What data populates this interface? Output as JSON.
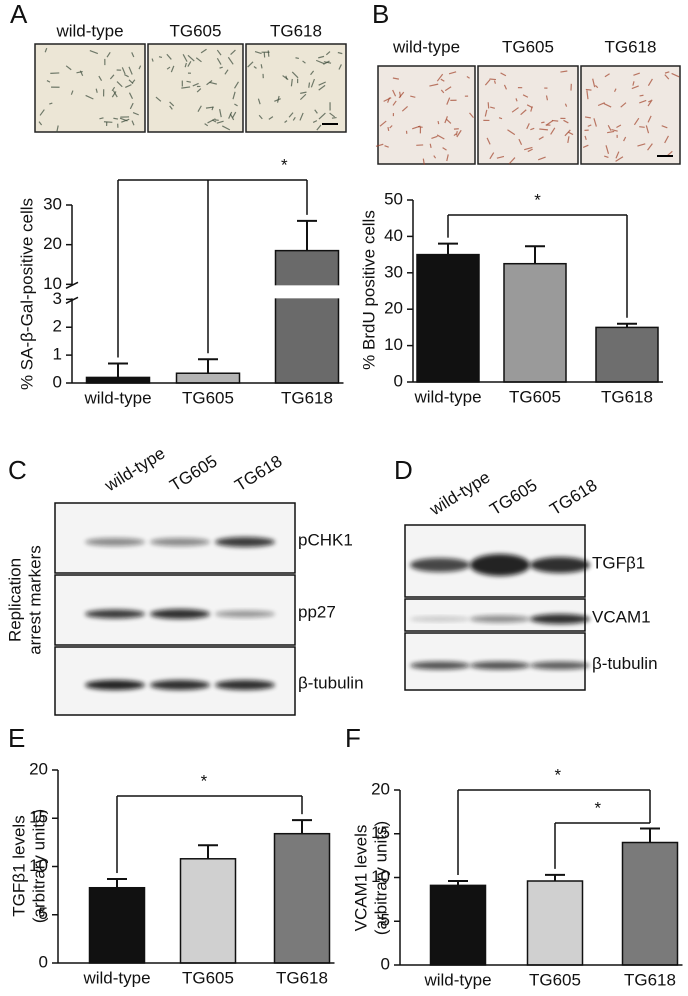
{
  "panel_labels": [
    "A",
    "B",
    "C",
    "D",
    "E",
    "F"
  ],
  "micrographs": [
    {
      "labels": [
        "wild-type",
        "TG605",
        "TG618"
      ]
    },
    {
      "labels": [
        "wild-type",
        "TG605",
        "TG618"
      ]
    }
  ],
  "blots": [
    {
      "lanes": [
        "wild-type",
        "TG605",
        "TG618"
      ],
      "bands": [
        "pCHK1",
        "pp27",
        "β-tubulin"
      ],
      "side_label": [
        "Replication",
        "arrest markers"
      ]
    },
    {
      "lanes": [
        "wild-type",
        "TG605",
        "TG618"
      ],
      "bands": [
        "TGFβ1",
        "VCAM1",
        "β-tubulin"
      ]
    }
  ],
  "chart_data": [
    {
      "type": "bar",
      "ylabel": [
        "% SA-β-Gal-positive cells"
      ],
      "categories": [
        "wild-type",
        "TG605",
        "TG618"
      ],
      "values": [
        0.2,
        0.35,
        18.5
      ],
      "errors": [
        0.5,
        0.5,
        7.5
      ],
      "colors": [
        "#111111",
        "#b4b4b4",
        "#6a6a6a"
      ],
      "ylim": [
        0,
        30
      ],
      "y_break": [
        3,
        10
      ],
      "yticks": [
        0,
        1,
        2,
        3,
        10,
        20,
        30
      ],
      "brackets": [
        {
          "label": "*",
          "between": [
            "wild-type",
            "TG605",
            "TG618"
          ]
        }
      ]
    },
    {
      "type": "bar",
      "ylabel": [
        "% BrdU positive cells"
      ],
      "categories": [
        "wild-type",
        "TG605",
        "TG618"
      ],
      "values": [
        35,
        32.5,
        15
      ],
      "errors": [
        3,
        4.8,
        1
      ],
      "colors": [
        "#111111",
        "#9a9a9a",
        "#6e6e6e"
      ],
      "ylim": [
        0,
        50
      ],
      "yticks": [
        0,
        10,
        20,
        30,
        40,
        50
      ],
      "brackets": [
        {
          "label": "*",
          "between": [
            "wild-type",
            "TG618"
          ]
        }
      ]
    },
    {
      "type": "bar",
      "ylabel": [
        "TGFβ1 levels",
        "(arbitrary units)"
      ],
      "categories": [
        "wild-type",
        "TG605",
        "TG618"
      ],
      "values": [
        7.8,
        10.8,
        13.4
      ],
      "errors": [
        0.9,
        1.4,
        1.4
      ],
      "colors": [
        "#111111",
        "#d0d0d0",
        "#7a7a7a"
      ],
      "ylim": [
        0,
        20
      ],
      "yticks": [
        0,
        5,
        10,
        15,
        20
      ],
      "brackets": [
        {
          "label": "*",
          "between": [
            "wild-type",
            "TG618"
          ]
        }
      ]
    },
    {
      "type": "bar",
      "ylabel": [
        "VCAM1 levels",
        "(arbitrary units)"
      ],
      "categories": [
        "wild-type",
        "TG605",
        "TG618"
      ],
      "values": [
        9.1,
        9.6,
        14
      ],
      "errors": [
        0.5,
        0.7,
        1.6
      ],
      "colors": [
        "#111111",
        "#d0d0d0",
        "#7a7a7a"
      ],
      "ylim": [
        0,
        20
      ],
      "yticks": [
        0,
        5,
        10,
        15,
        20
      ],
      "brackets": [
        {
          "label": "*",
          "between": [
            "wild-type",
            "TG618"
          ]
        },
        {
          "label": "*",
          "between": [
            "TG605",
            "TG618"
          ]
        }
      ]
    }
  ]
}
